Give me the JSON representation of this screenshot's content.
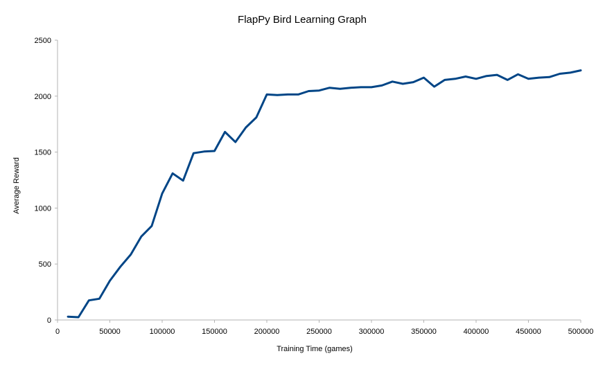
{
  "chart_data": {
    "type": "line",
    "title": "FlapPy Bird Learning Graph",
    "xlabel": "Training Time (games)",
    "ylabel": "Average Reward",
    "xlim": [
      0,
      500000
    ],
    "ylim": [
      0,
      2500
    ],
    "x_ticks": [
      0,
      50000,
      100000,
      150000,
      200000,
      250000,
      300000,
      350000,
      400000,
      450000,
      500000
    ],
    "y_ticks": [
      0,
      500,
      1000,
      1500,
      2000,
      2500
    ],
    "grid": false,
    "legend": "none",
    "line_color": "#004586",
    "axis_color": "#b3b3b3",
    "series": [
      {
        "x": [
          10000,
          20000,
          30000,
          40000,
          50000,
          60000,
          70000,
          80000,
          90000,
          100000,
          110000,
          120000,
          130000,
          140000,
          150000,
          160000,
          170000,
          180000,
          190000,
          200000,
          210000,
          220000,
          230000,
          240000,
          250000,
          260000,
          270000,
          280000,
          290000,
          300000,
          310000,
          320000,
          330000,
          340000,
          350000,
          360000,
          370000,
          380000,
          390000,
          400000,
          410000,
          420000,
          430000,
          440000,
          450000,
          460000,
          470000,
          480000,
          490000,
          500000
        ],
        "y": [
          30,
          25,
          175,
          190,
          350,
          475,
          585,
          745,
          840,
          1130,
          1310,
          1245,
          1490,
          1505,
          1510,
          1680,
          1590,
          1720,
          1810,
          2015,
          2010,
          2015,
          2015,
          2045,
          2050,
          2075,
          2065,
          2075,
          2080,
          2080,
          2095,
          2130,
          2110,
          2125,
          2165,
          2085,
          2145,
          2155,
          2175,
          2155,
          2180,
          2190,
          2145,
          2195,
          2155,
          2165,
          2170,
          2200,
          2210,
          2230
        ]
      }
    ]
  }
}
